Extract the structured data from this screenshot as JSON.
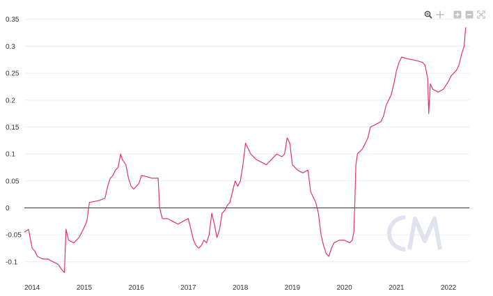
{
  "toolbar": {
    "icons": [
      "zoom-in-icon",
      "pan-icon",
      "zoom-plus-icon",
      "zoom-minus-icon",
      "reset-zoom-icon"
    ]
  },
  "watermark": {
    "icon": "coinmetrics-logo-watermark",
    "color": "#dfe3ef"
  },
  "chart_data": {
    "type": "line",
    "title": "",
    "xlabel": "",
    "ylabel": "",
    "x_ticks": [
      "2014",
      "2015",
      "2016",
      "2017",
      "2018",
      "2019",
      "2020",
      "2021",
      "2022"
    ],
    "y_ticks": [
      "-0.1",
      "-0.05",
      "0",
      "0.05",
      "0.1",
      "0.15",
      "0.2",
      "0.25",
      "0.3",
      "0.35"
    ],
    "xlim": [
      2013.85,
      2022.4
    ],
    "ylim": [
      -0.13,
      0.36
    ],
    "grid": true,
    "legend": "none",
    "zero_line": true,
    "series": [
      {
        "color": "#e2336b",
        "points": [
          [
            2013.85,
            -0.045
          ],
          [
            2013.93,
            -0.04
          ],
          [
            2013.96,
            -0.055
          ],
          [
            2014.0,
            -0.075
          ],
          [
            2014.05,
            -0.08
          ],
          [
            2014.1,
            -0.09
          ],
          [
            2014.2,
            -0.095
          ],
          [
            2014.3,
            -0.095
          ],
          [
            2014.4,
            -0.1
          ],
          [
            2014.5,
            -0.105
          ],
          [
            2014.57,
            -0.115
          ],
          [
            2014.62,
            -0.12
          ],
          [
            2014.65,
            -0.04
          ],
          [
            2014.7,
            -0.06
          ],
          [
            2014.8,
            -0.065
          ],
          [
            2014.9,
            -0.055
          ],
          [
            2014.98,
            -0.04
          ],
          [
            2015.05,
            -0.025
          ],
          [
            2015.1,
            0.01
          ],
          [
            2015.2,
            0.012
          ],
          [
            2015.3,
            0.014
          ],
          [
            2015.4,
            0.018
          ],
          [
            2015.45,
            0.04
          ],
          [
            2015.5,
            0.055
          ],
          [
            2015.55,
            0.06
          ],
          [
            2015.6,
            0.07
          ],
          [
            2015.65,
            0.075
          ],
          [
            2015.7,
            0.1
          ],
          [
            2015.73,
            0.09
          ],
          [
            2015.8,
            0.08
          ],
          [
            2015.85,
            0.055
          ],
          [
            2015.9,
            0.04
          ],
          [
            2015.95,
            0.035
          ],
          [
            2016.0,
            0.04
          ],
          [
            2016.05,
            0.045
          ],
          [
            2016.1,
            0.06
          ],
          [
            2016.2,
            0.058
          ],
          [
            2016.3,
            0.055
          ],
          [
            2016.42,
            0.055
          ],
          [
            2016.45,
            0.0
          ],
          [
            2016.5,
            -0.02
          ],
          [
            2016.6,
            -0.02
          ],
          [
            2016.7,
            -0.025
          ],
          [
            2016.8,
            -0.03
          ],
          [
            2016.9,
            -0.025
          ],
          [
            2017.0,
            -0.02
          ],
          [
            2017.05,
            -0.04
          ],
          [
            2017.1,
            -0.06
          ],
          [
            2017.15,
            -0.07
          ],
          [
            2017.2,
            -0.075
          ],
          [
            2017.25,
            -0.07
          ],
          [
            2017.3,
            -0.06
          ],
          [
            2017.35,
            -0.065
          ],
          [
            2017.4,
            -0.05
          ],
          [
            2017.45,
            -0.01
          ],
          [
            2017.5,
            -0.03
          ],
          [
            2017.55,
            -0.055
          ],
          [
            2017.6,
            -0.04
          ],
          [
            2017.65,
            -0.01
          ],
          [
            2017.7,
            -0.005
          ],
          [
            2017.75,
            0.005
          ],
          [
            2017.8,
            0.01
          ],
          [
            2017.85,
            0.03
          ],
          [
            2017.9,
            0.05
          ],
          [
            2017.95,
            0.04
          ],
          [
            2018.0,
            0.05
          ],
          [
            2018.05,
            0.08
          ],
          [
            2018.1,
            0.12
          ],
          [
            2018.15,
            0.11
          ],
          [
            2018.2,
            0.1
          ],
          [
            2018.3,
            0.09
          ],
          [
            2018.4,
            0.085
          ],
          [
            2018.5,
            0.08
          ],
          [
            2018.6,
            0.09
          ],
          [
            2018.7,
            0.1
          ],
          [
            2018.8,
            0.095
          ],
          [
            2018.85,
            0.1
          ],
          [
            2018.9,
            0.13
          ],
          [
            2018.95,
            0.12
          ],
          [
            2019.0,
            0.08
          ],
          [
            2019.05,
            0.075
          ],
          [
            2019.1,
            0.07
          ],
          [
            2019.2,
            0.065
          ],
          [
            2019.3,
            0.07
          ],
          [
            2019.35,
            0.03
          ],
          [
            2019.4,
            0.02
          ],
          [
            2019.45,
            0.01
          ],
          [
            2019.5,
            -0.01
          ],
          [
            2019.55,
            -0.05
          ],
          [
            2019.6,
            -0.07
          ],
          [
            2019.65,
            -0.085
          ],
          [
            2019.7,
            -0.09
          ],
          [
            2019.75,
            -0.075
          ],
          [
            2019.8,
            -0.065
          ],
          [
            2019.9,
            -0.06
          ],
          [
            2020.0,
            -0.06
          ],
          [
            2020.1,
            -0.065
          ],
          [
            2020.15,
            -0.06
          ],
          [
            2020.18,
            -0.045
          ],
          [
            2020.2,
            0.01
          ],
          [
            2020.22,
            0.08
          ],
          [
            2020.25,
            0.1
          ],
          [
            2020.3,
            0.105
          ],
          [
            2020.35,
            0.11
          ],
          [
            2020.45,
            0.13
          ],
          [
            2020.5,
            0.15
          ],
          [
            2020.6,
            0.155
          ],
          [
            2020.7,
            0.16
          ],
          [
            2020.75,
            0.17
          ],
          [
            2020.8,
            0.19
          ],
          [
            2020.9,
            0.21
          ],
          [
            2020.95,
            0.23
          ],
          [
            2021.0,
            0.255
          ],
          [
            2021.05,
            0.27
          ],
          [
            2021.1,
            0.28
          ],
          [
            2021.2,
            0.277
          ],
          [
            2021.3,
            0.275
          ],
          [
            2021.4,
            0.273
          ],
          [
            2021.5,
            0.27
          ],
          [
            2021.55,
            0.265
          ],
          [
            2021.6,
            0.24
          ],
          [
            2021.62,
            0.175
          ],
          [
            2021.65,
            0.23
          ],
          [
            2021.7,
            0.22
          ],
          [
            2021.8,
            0.215
          ],
          [
            2021.9,
            0.22
          ],
          [
            2022.0,
            0.235
          ],
          [
            2022.05,
            0.245
          ],
          [
            2022.1,
            0.25
          ],
          [
            2022.15,
            0.255
          ],
          [
            2022.2,
            0.265
          ],
          [
            2022.25,
            0.285
          ],
          [
            2022.3,
            0.3
          ],
          [
            2022.33,
            0.335
          ]
        ]
      }
    ]
  }
}
